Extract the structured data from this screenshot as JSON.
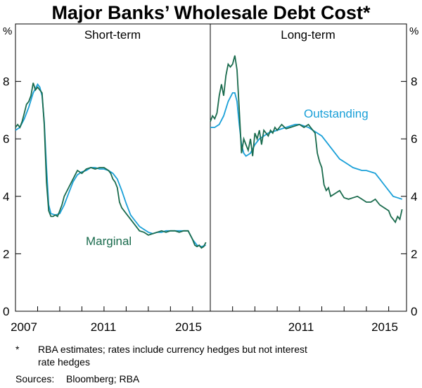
{
  "title": "Major Banks’ Wholesale Debt Cost*",
  "footnote": {
    "marker": "*",
    "line1": "RBA estimates; rates include currency hedges but not interest",
    "line2": "rate hedges"
  },
  "sources": {
    "label": "Sources:",
    "text": "Bloomberg; RBA"
  },
  "colors": {
    "marginal": "#1a6b4d",
    "outstanding": "#1aa0d8",
    "axis": "#000000"
  },
  "chart_data": {
    "type": "line",
    "y_unit_label": "%",
    "ylim": [
      0,
      10
    ],
    "y_ticks": [
      "0",
      "2",
      "4",
      "6",
      "8"
    ],
    "xlim": [
      2007.0,
      2015.8
    ],
    "panels": [
      {
        "title": "Short-term",
        "x_ticks": [
          "2007",
          "2011",
          "2015"
        ],
        "series": [
          {
            "name": "Marginal",
            "label": "Marginal",
            "color": "#1a6b4d",
            "x": [
              2007.0,
              2007.1,
              2007.2,
              2007.3,
              2007.4,
              2007.5,
              2007.6,
              2007.7,
              2007.8,
              2007.9,
              2008.0,
              2008.1,
              2008.2,
              2008.3,
              2008.4,
              2008.5,
              2008.6,
              2008.7,
              2008.8,
              2008.9,
              2009.0,
              2009.1,
              2009.2,
              2009.4,
              2009.6,
              2009.8,
              2010.0,
              2010.2,
              2010.4,
              2010.6,
              2010.8,
              2011.0,
              2011.2,
              2011.3,
              2011.4,
              2011.5,
              2011.6,
              2011.7,
              2011.8,
              2012.0,
              2012.2,
              2012.4,
              2012.6,
              2012.8,
              2013.0,
              2013.2,
              2013.4,
              2013.6,
              2013.8,
              2014.0,
              2014.2,
              2014.4,
              2014.6,
              2014.8,
              2015.0,
              2015.1,
              2015.2,
              2015.3,
              2015.4,
              2015.5,
              2015.6
            ],
            "values": [
              6.4,
              6.5,
              6.4,
              6.6,
              6.9,
              7.2,
              7.3,
              7.5,
              7.95,
              7.7,
              7.8,
              7.7,
              7.6,
              6.5,
              4.5,
              3.5,
              3.3,
              3.3,
              3.35,
              3.3,
              3.5,
              3.7,
              4.0,
              4.3,
              4.6,
              4.9,
              4.8,
              4.95,
              5.0,
              4.95,
              5.0,
              5.0,
              4.9,
              4.8,
              4.6,
              4.5,
              4.3,
              3.8,
              3.6,
              3.4,
              3.2,
              3.0,
              2.8,
              2.75,
              2.65,
              2.7,
              2.75,
              2.8,
              2.75,
              2.8,
              2.8,
              2.75,
              2.8,
              2.8,
              2.5,
              2.3,
              2.25,
              2.3,
              2.2,
              2.25,
              2.4
            ]
          },
          {
            "name": "Outstanding",
            "color": "#1aa0d8",
            "x": [
              2007.0,
              2007.2,
              2007.4,
              2007.6,
              2007.8,
              2008.0,
              2008.1,
              2008.2,
              2008.3,
              2008.4,
              2008.5,
              2008.6,
              2008.8,
              2009.0,
              2009.2,
              2009.4,
              2009.6,
              2009.8,
              2010.0,
              2010.2,
              2010.4,
              2010.6,
              2010.8,
              2011.0,
              2011.2,
              2011.4,
              2011.6,
              2011.8,
              2012.0,
              2012.2,
              2012.4,
              2012.6,
              2012.8,
              2013.0,
              2013.2,
              2013.4,
              2013.6,
              2013.8,
              2014.0,
              2014.2,
              2014.4,
              2014.6,
              2014.8,
              2015.0,
              2015.2,
              2015.4,
              2015.6
            ],
            "values": [
              6.3,
              6.4,
              6.7,
              7.1,
              7.6,
              7.9,
              7.8,
              7.5,
              6.6,
              5.0,
              3.7,
              3.4,
              3.35,
              3.4,
              3.7,
              4.1,
              4.5,
              4.75,
              4.85,
              4.9,
              5.0,
              5.0,
              4.95,
              4.95,
              4.9,
              4.8,
              4.6,
              4.2,
              3.75,
              3.35,
              3.15,
              2.95,
              2.85,
              2.75,
              2.7,
              2.75,
              2.75,
              2.8,
              2.8,
              2.8,
              2.8,
              2.8,
              2.8,
              2.5,
              2.3,
              2.25,
              2.3
            ]
          }
        ]
      },
      {
        "title": "Long-term",
        "x_ticks": [
          "2011",
          "2015"
        ],
        "series": [
          {
            "name": "Marginal",
            "color": "#1a6b4d",
            "x": [
              2007.0,
              2007.1,
              2007.2,
              2007.3,
              2007.4,
              2007.5,
              2007.6,
              2007.7,
              2007.8,
              2007.9,
              2008.0,
              2008.1,
              2008.2,
              2008.3,
              2008.4,
              2008.5,
              2008.6,
              2008.7,
              2008.8,
              2008.9,
              2009.0,
              2009.1,
              2009.2,
              2009.3,
              2009.4,
              2009.5,
              2009.6,
              2009.7,
              2009.8,
              2009.9,
              2010.0,
              2010.2,
              2010.4,
              2010.6,
              2010.8,
              2011.0,
              2011.2,
              2011.4,
              2011.6,
              2011.7,
              2011.8,
              2011.9,
              2012.0,
              2012.1,
              2012.2,
              2012.3,
              2012.4,
              2012.6,
              2012.8,
              2013.0,
              2013.2,
              2013.4,
              2013.6,
              2013.8,
              2014.0,
              2014.2,
              2014.4,
              2014.6,
              2014.8,
              2015.0,
              2015.1,
              2015.2,
              2015.3,
              2015.4,
              2015.5,
              2015.6
            ],
            "values": [
              6.6,
              6.8,
              6.7,
              6.9,
              7.5,
              7.9,
              7.5,
              8.2,
              8.6,
              8.5,
              8.6,
              8.9,
              8.4,
              7.0,
              5.5,
              6.0,
              5.8,
              5.6,
              6.0,
              5.4,
              6.2,
              6.0,
              6.3,
              5.8,
              6.3,
              6.2,
              6.1,
              6.3,
              6.2,
              6.4,
              6.3,
              6.5,
              6.35,
              6.4,
              6.45,
              6.5,
              6.4,
              6.5,
              6.3,
              6.2,
              5.5,
              5.2,
              5.0,
              4.4,
              4.2,
              4.3,
              4.0,
              4.1,
              4.2,
              3.95,
              3.9,
              3.95,
              4.0,
              3.9,
              3.8,
              3.8,
              3.9,
              3.7,
              3.6,
              3.5,
              3.3,
              3.2,
              3.1,
              3.3,
              3.2,
              3.55
            ]
          },
          {
            "name": "Outstanding",
            "label": "Outstanding",
            "color": "#1aa0d8",
            "x": [
              2007.0,
              2007.2,
              2007.4,
              2007.6,
              2007.8,
              2008.0,
              2008.1,
              2008.2,
              2008.3,
              2008.4,
              2008.5,
              2008.6,
              2008.8,
              2009.0,
              2009.2,
              2009.4,
              2009.6,
              2009.8,
              2010.0,
              2010.2,
              2010.4,
              2010.6,
              2010.8,
              2011.0,
              2011.2,
              2011.4,
              2011.6,
              2011.8,
              2012.0,
              2012.2,
              2012.4,
              2012.6,
              2012.8,
              2013.0,
              2013.2,
              2013.4,
              2013.6,
              2013.8,
              2014.0,
              2014.2,
              2014.4,
              2014.6,
              2014.8,
              2015.0,
              2015.2,
              2015.4,
              2015.6
            ],
            "values": [
              6.4,
              6.4,
              6.5,
              6.8,
              7.3,
              7.6,
              7.6,
              7.3,
              6.5,
              5.8,
              5.5,
              5.4,
              5.5,
              5.8,
              6.0,
              6.1,
              6.2,
              6.25,
              6.3,
              6.35,
              6.4,
              6.45,
              6.5,
              6.5,
              6.45,
              6.4,
              6.3,
              6.2,
              6.1,
              5.9,
              5.7,
              5.5,
              5.3,
              5.2,
              5.1,
              5.0,
              4.95,
              4.9,
              4.9,
              4.85,
              4.8,
              4.6,
              4.4,
              4.2,
              4.0,
              3.95,
              3.9
            ]
          }
        ]
      }
    ]
  }
}
